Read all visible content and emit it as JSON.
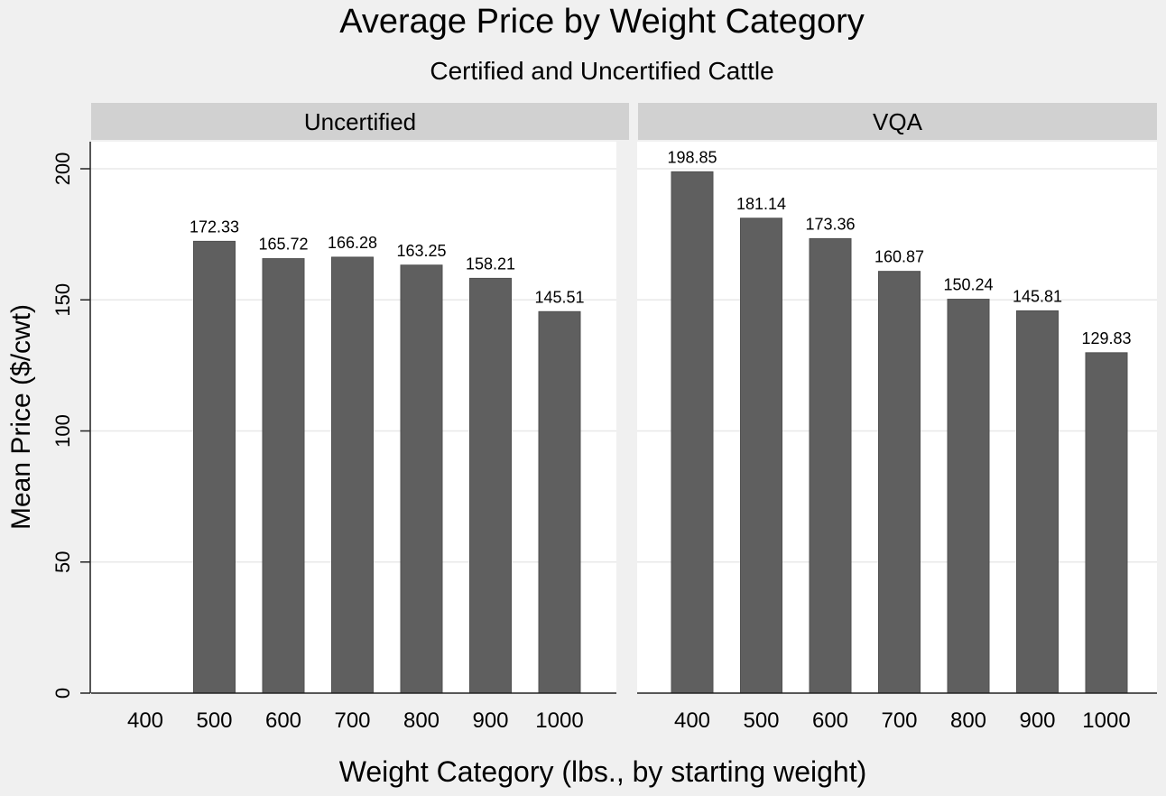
{
  "chart_data": {
    "type": "bar",
    "title": "Average Price by Weight Category",
    "subtitle": "Certified and Uncertified Cattle",
    "xlabel": "Weight Category (lbs., by starting weight)",
    "ylabel": "Mean Price ($/cwt)",
    "ylim": [
      0,
      200
    ],
    "yticks": [
      0,
      50,
      100,
      150,
      200
    ],
    "grid": true,
    "categories": [
      "400",
      "500",
      "600",
      "700",
      "800",
      "900",
      "1000"
    ],
    "bar_color": "#5f5f5f",
    "panels": [
      {
        "name": "Uncertified",
        "values": [
          null,
          172.33,
          165.72,
          166.28,
          163.25,
          158.21,
          145.51
        ],
        "labels": [
          "",
          "172.33",
          "165.72",
          "166.28",
          "163.25",
          "158.21",
          "145.51"
        ]
      },
      {
        "name": "VQA",
        "values": [
          198.85,
          181.14,
          173.36,
          160.87,
          150.24,
          145.81,
          129.83
        ],
        "labels": [
          "198.85",
          "181.14",
          "173.36",
          "160.87",
          "150.24",
          "145.81",
          "129.83"
        ]
      }
    ]
  }
}
